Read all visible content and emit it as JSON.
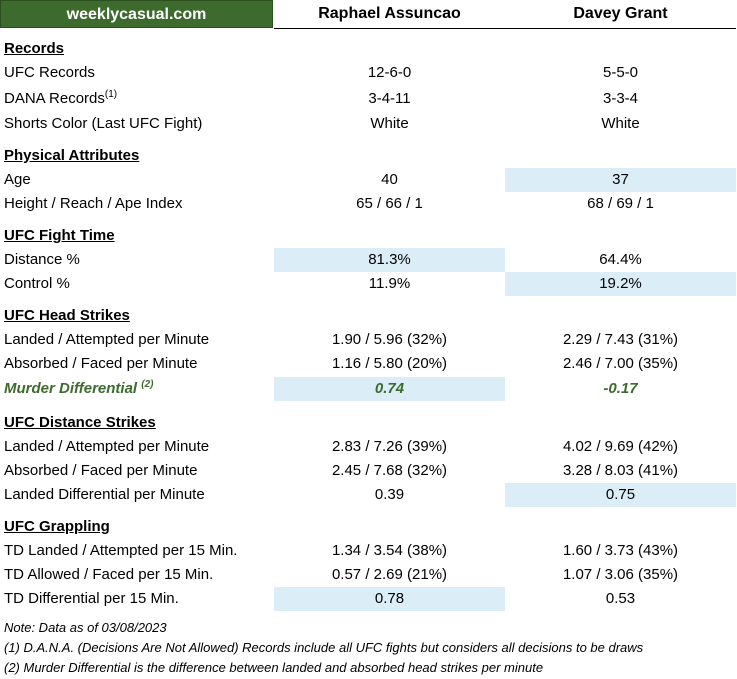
{
  "brand": "weeklycasual.com",
  "fighters": [
    "Raphael Assuncao",
    "Davey Grant"
  ],
  "sections": {
    "records": {
      "title": "Records",
      "ufc": {
        "label": "UFC Records",
        "f1": "12-6-0",
        "f2": "5-5-0"
      },
      "dana": {
        "label": "DANA Records",
        "sup": "(1)",
        "f1": "3-4-11",
        "f2": "3-3-4"
      },
      "shorts": {
        "label": "Shorts Color (Last UFC Fight)",
        "f1": "White",
        "f2": "White"
      }
    },
    "physical": {
      "title": "Physical Attributes",
      "age": {
        "label": "Age",
        "f1": "40",
        "f2": "37"
      },
      "height": {
        "label": "Height / Reach / Ape Index",
        "f1": "65 / 66 / 1",
        "f2": "68 / 69 / 1"
      }
    },
    "fight_time": {
      "title": "UFC Fight Time",
      "distance": {
        "label": "Distance %",
        "f1": "81.3%",
        "f2": "64.4%"
      },
      "control": {
        "label": "Control %",
        "f1": "11.9%",
        "f2": "19.2%"
      }
    },
    "head": {
      "title": "UFC Head Strikes",
      "landed": {
        "label": "Landed / Attempted per Minute",
        "f1": "1.90 / 5.96 (32%)",
        "f2": "2.29 / 7.43 (31%)"
      },
      "absorbed": {
        "label": "Absorbed / Faced per Minute",
        "f1": "1.16 / 5.80 (20%)",
        "f2": "2.46 / 7.00 (35%)"
      },
      "murder": {
        "label": "Murder Differential",
        "sup": "(2)",
        "f1": "0.74",
        "f2": "-0.17"
      }
    },
    "distance": {
      "title": "UFC Distance Strikes",
      "landed": {
        "label": "Landed / Attempted per Minute",
        "f1": "2.83 / 7.26 (39%)",
        "f2": "4.02 / 9.69 (42%)"
      },
      "absorbed": {
        "label": "Absorbed / Faced per Minute",
        "f1": "2.45 / 7.68 (32%)",
        "f2": "3.28 / 8.03 (41%)"
      },
      "diff": {
        "label": "Landed Differential per Minute",
        "f1": "0.39",
        "f2": "0.75"
      }
    },
    "grappling": {
      "title": "UFC Grappling",
      "td_landed": {
        "label": "TD Landed / Attempted per 15 Min.",
        "f1": "1.34 / 3.54 (38%)",
        "f2": "1.60 / 3.73 (43%)"
      },
      "td_allowed": {
        "label": "TD Allowed / Faced per 15 Min.",
        "f1": "0.57 / 2.69 (21%)",
        "f2": "1.07 / 3.06 (35%)"
      },
      "td_diff": {
        "label": "TD Differential per 15 Min.",
        "f1": "0.78",
        "f2": "0.53"
      }
    }
  },
  "notes": [
    "Note: Data as of 03/08/2023",
    "(1) D.A.N.A. (Decisions Are Not Allowed) Records include all UFC fights but considers all decisions to be draws",
    "(2) Murder Differential is the difference between landed and absorbed head strikes per minute"
  ],
  "colors": {
    "brand_green": "#3d6b2d",
    "highlight": "#dbeef8"
  }
}
